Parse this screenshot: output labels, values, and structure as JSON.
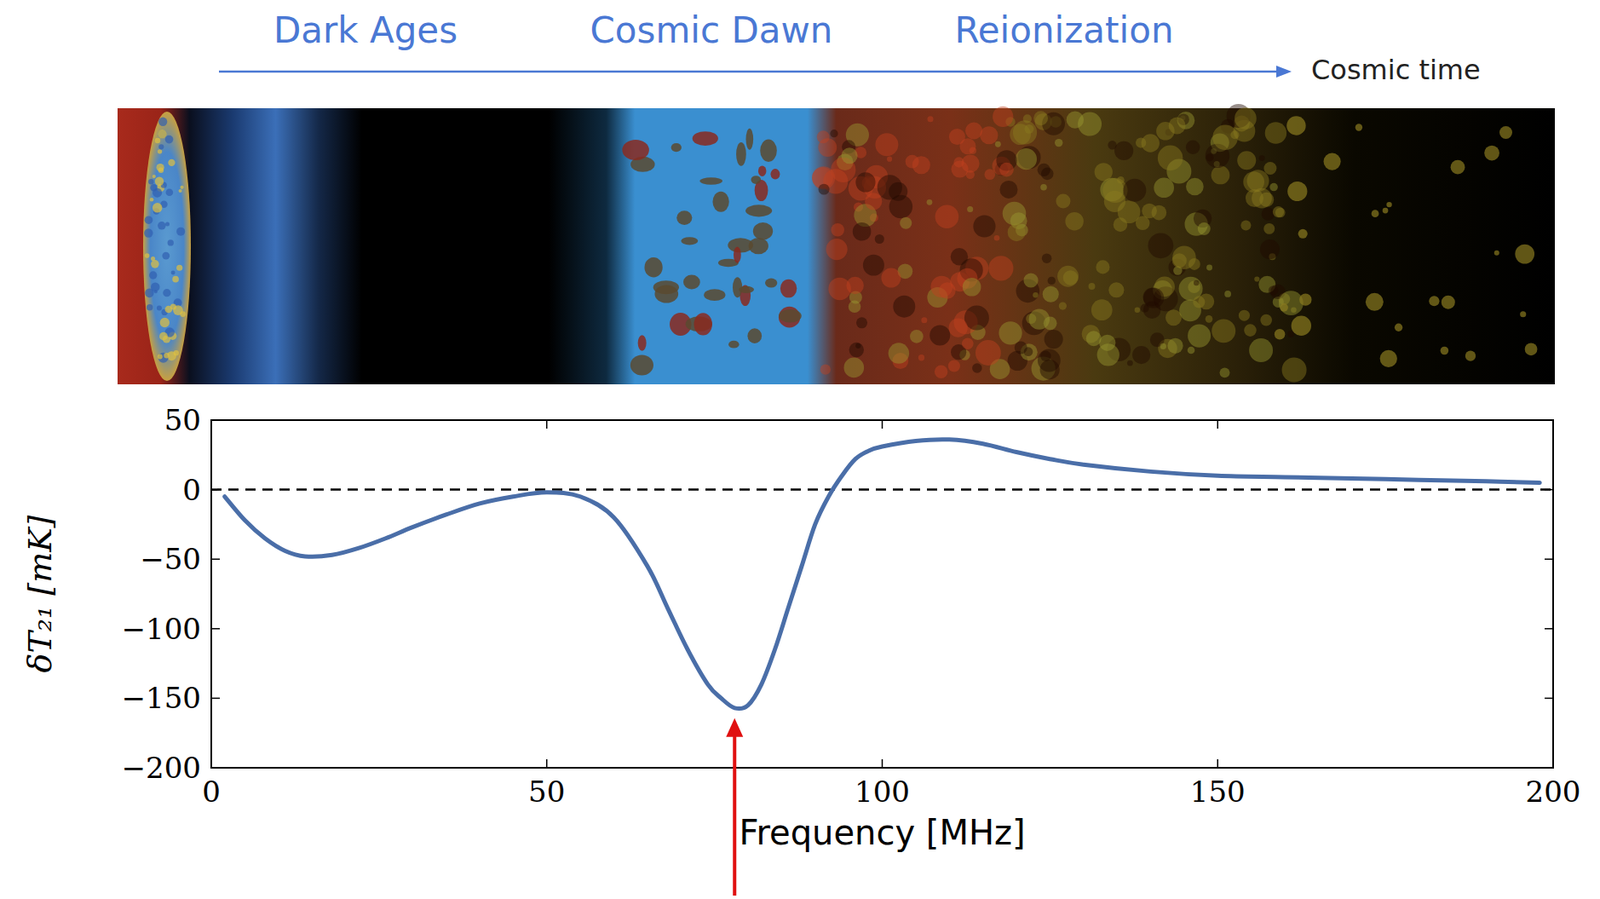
{
  "chart_data": {
    "type": "line",
    "eras": [
      "Dark Ages",
      "Cosmic Dawn",
      "Reionization"
    ],
    "time_label": "Cosmic time",
    "x_label": "Frequency [MHz]",
    "y_label": "δT₂₁ [mK]",
    "x": [
      2,
      5,
      8,
      11,
      14,
      18,
      22,
      26,
      30,
      35,
      40,
      45,
      50,
      55,
      60,
      65,
      68,
      71,
      74,
      76,
      78,
      80,
      82,
      84,
      86,
      88,
      90,
      92,
      94,
      96,
      98,
      100,
      105,
      110,
      115,
      120,
      125,
      130,
      140,
      150,
      160,
      170,
      180,
      190,
      198
    ],
    "values": [
      -5,
      -22,
      -35,
      -44,
      -48,
      -47,
      -42,
      -35,
      -27,
      -18,
      -10,
      -5,
      -2,
      -5,
      -20,
      -55,
      -85,
      -115,
      -140,
      -150,
      -157,
      -155,
      -140,
      -115,
      -85,
      -55,
      -25,
      -5,
      10,
      22,
      28,
      31,
      35,
      36,
      33,
      27,
      22,
      18,
      13,
      10,
      9,
      8,
      7,
      6,
      5
    ],
    "color": "#4a6ea8",
    "reference_lines": [
      0
    ],
    "xlim": [
      0,
      200
    ],
    "ylim": [
      -200,
      50
    ],
    "xticks": [
      0,
      50,
      100,
      150,
      200
    ],
    "yticks": [
      {
        "value": -200,
        "label": "−200"
      },
      {
        "value": -150,
        "label": "−150"
      },
      {
        "value": -100,
        "label": "−100"
      },
      {
        "value": -50,
        "label": "−50"
      },
      0,
      50
    ],
    "grid": false
  }
}
